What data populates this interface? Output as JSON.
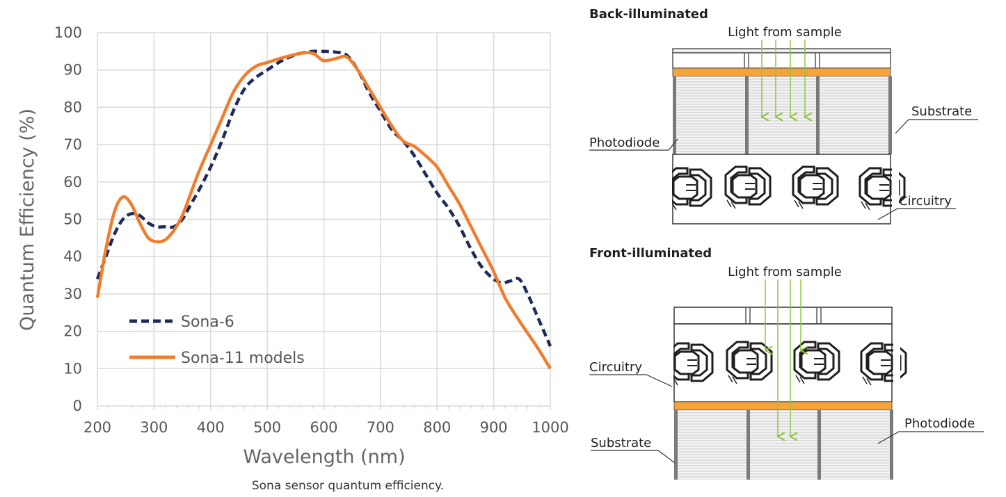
{
  "chart_data": {
    "type": "line",
    "xlabel": "Wavelength (nm)",
    "ylabel": "Quantum Efficiency (%)",
    "xlim": [
      200,
      1000
    ],
    "ylim": [
      0,
      100
    ],
    "xticks": [
      200,
      300,
      400,
      500,
      600,
      700,
      800,
      900,
      1000
    ],
    "yticks": [
      0,
      10,
      20,
      30,
      40,
      50,
      60,
      70,
      80,
      90,
      100
    ],
    "grid": true,
    "legend_position": "bottom-left",
    "series": [
      {
        "name": "Sona-6",
        "color": "#1c2b5a",
        "style": "dashed",
        "x": [
          200,
          215,
          230,
          245,
          260,
          275,
          290,
          305,
          320,
          335,
          350,
          365,
          380,
          400,
          420,
          440,
          460,
          480,
          500,
          520,
          540,
          560,
          580,
          600,
          620,
          640,
          660,
          680,
          700,
          720,
          740,
          760,
          780,
          800,
          820,
          840,
          860,
          880,
          900,
          915,
          930,
          945,
          960,
          980,
          1000
        ],
        "y": [
          34,
          40,
          46,
          50,
          51.5,
          51,
          49,
          48,
          48,
          48,
          50,
          54,
          58,
          64,
          71,
          79,
          85,
          88,
          90,
          92,
          93.5,
          94.5,
          95,
          95,
          94.8,
          94,
          90,
          84,
          79,
          74,
          71,
          67,
          62,
          57,
          53,
          48,
          42,
          37,
          34,
          33,
          33.5,
          34,
          30,
          23,
          16
        ]
      },
      {
        "name": "Sona-11 models",
        "color": "#f07d2d",
        "style": "solid",
        "x": [
          200,
          215,
          230,
          245,
          260,
          275,
          290,
          305,
          320,
          335,
          350,
          365,
          380,
          400,
          420,
          440,
          460,
          480,
          500,
          520,
          540,
          560,
          580,
          590,
          600,
          620,
          640,
          660,
          680,
          700,
          720,
          740,
          760,
          780,
          800,
          820,
          840,
          860,
          880,
          900,
          920,
          940,
          960,
          980,
          1000
        ],
        "y": [
          29,
          42,
          52,
          56,
          54,
          49,
          45,
          44,
          44.5,
          47,
          51,
          57,
          63,
          70,
          77,
          84,
          88.5,
          91,
          92,
          93,
          93.8,
          94.5,
          94.5,
          93.5,
          92.5,
          93,
          93.5,
          90,
          85,
          80,
          75,
          71,
          69.5,
          67,
          64,
          59,
          54,
          48,
          42,
          36,
          29,
          24,
          19.5,
          15,
          10
        ]
      }
    ]
  },
  "caption": "Sona sensor quantum efficiency.",
  "diagram": {
    "back": {
      "title": "Back-illuminated",
      "light": "Light from sample",
      "substrate": "Substrate",
      "photodiode": "Photodiode",
      "circuitry": "Circuitry"
    },
    "front": {
      "title": "Front-illuminated",
      "light": "Light from sample",
      "circuitry": "Circuitry",
      "photodiode": "Photodiode",
      "substrate": "Substrate"
    },
    "colors": {
      "orange_layer": "#f6a33a",
      "light_arrow": "#8cc63f",
      "pixel_wall": "#7a7a7a",
      "hatch": "#c8c8c8"
    }
  }
}
